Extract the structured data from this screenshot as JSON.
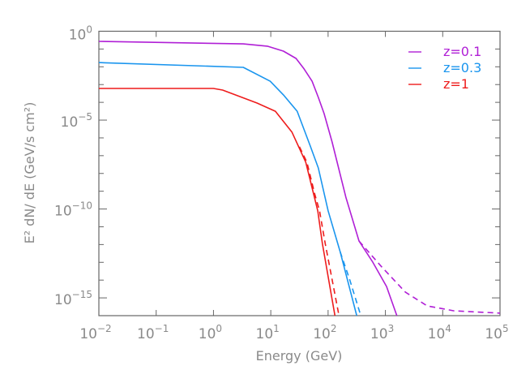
{
  "chart_data": {
    "type": "line",
    "xlabel": "Energy (GeV)",
    "ylabel": "E² dN/ dE (GeV/s cm²)",
    "xscale": "log",
    "yscale": "log",
    "xlim": [
      0.01,
      100000
    ],
    "ylim": [
      1e-16,
      1
    ],
    "x_tick_exponents": [
      -2,
      -1,
      0,
      1,
      2,
      3,
      4,
      5
    ],
    "y_tick_exponents": [
      0,
      -5,
      -10,
      -15
    ],
    "grid": false,
    "legend_position": "top-right",
    "series": [
      {
        "name": "z=0.1",
        "color": "#b01fd6",
        "style": "solid",
        "log10_x": [
          -2,
          0.52,
          0.94,
          1.22,
          1.44,
          1.58,
          1.72,
          1.83,
          1.93,
          2.07,
          2.31,
          2.54,
          2.78,
          3.02,
          3.2
        ],
        "log10_y": [
          -0.57,
          -0.71,
          -0.84,
          -1.12,
          -1.53,
          -2.12,
          -2.81,
          -3.72,
          -4.63,
          -6.23,
          -9.34,
          -11.8,
          -12.99,
          -14.36,
          -16.0
        ]
      },
      {
        "name": "z=0.1",
        "color": "#b01fd6",
        "style": "dashed",
        "log10_x": [
          2.54,
          2.92,
          3.35,
          3.73,
          4.2,
          5.0
        ],
        "log10_y": [
          -11.8,
          -13.2,
          -14.68,
          -15.45,
          -15.73,
          -15.86
        ]
      },
      {
        "name": "z=0.3",
        "color": "#1a95ee",
        "style": "solid",
        "log10_x": [
          -2,
          0.52,
          0.99,
          1.22,
          1.46,
          1.69,
          1.83,
          2.0,
          2.21,
          2.5
        ],
        "log10_y": [
          -1.76,
          -2.03,
          -2.81,
          -3.58,
          -4.5,
          -6.46,
          -7.69,
          -10.1,
          -12.4,
          -16.0
        ]
      },
      {
        "name": "z=0.3",
        "color": "#1a95ee",
        "style": "dashed",
        "log10_x": [
          2.21,
          2.38,
          2.57
        ],
        "log10_y": [
          -12.4,
          -14.0,
          -16.0
        ]
      },
      {
        "name": "z=1",
        "color": "#ee1c1c",
        "style": "solid",
        "log10_x": [
          -2,
          0.0,
          0.16,
          0.76,
          1.08,
          1.37,
          1.61,
          1.75,
          1.82,
          1.9,
          2.12
        ],
        "log10_y": [
          -3.22,
          -3.22,
          -3.31,
          -4.04,
          -4.5,
          -5.68,
          -7.37,
          -9.2,
          -10.1,
          -11.94,
          -16.0
        ]
      },
      {
        "name": "z=1",
        "color": "#ee1c1c",
        "style": "dashed",
        "log10_x": [
          1.5,
          1.63,
          1.77,
          1.85,
          1.95,
          2.19
        ],
        "log10_y": [
          -6.5,
          -7.37,
          -9.2,
          -10.1,
          -11.94,
          -16.0
        ]
      }
    ],
    "legend": [
      {
        "label": "z=0.1",
        "color": "#b01fd6"
      },
      {
        "label": "z=0.3",
        "color": "#1a95ee"
      },
      {
        "label": "z=1",
        "color": "#ee1c1c"
      }
    ]
  }
}
